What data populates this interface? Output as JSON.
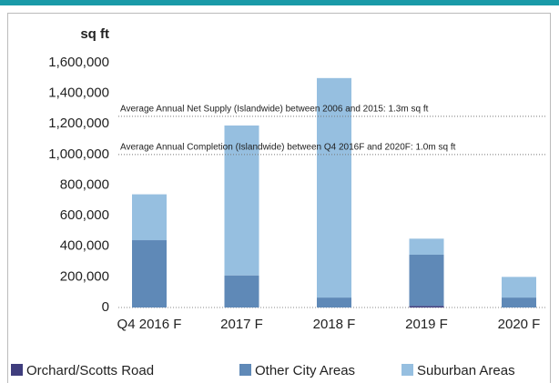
{
  "chart_data": {
    "type": "bar",
    "stacked": true,
    "y_label": "sq ft",
    "categories": [
      "Q4 2016 F",
      "2017 F",
      "2018 F",
      "2019 F",
      "2020 F"
    ],
    "series": [
      {
        "name": "Orchard/Scotts Road",
        "color": "#3f3d7d",
        "values": [
          0,
          0,
          0,
          10000,
          0
        ]
      },
      {
        "name": "Other City Areas",
        "color": "#5f89b7",
        "values": [
          440000,
          210000,
          65000,
          335000,
          65000
        ]
      },
      {
        "name": "Suburban Areas",
        "color": "#96bfe0",
        "values": [
          300000,
          980000,
          1435000,
          105000,
          135000
        ]
      }
    ],
    "ylim": [
      0,
      1600000
    ],
    "yticks": [
      0,
      {
        "value": 200000,
        "label": "200,000"
      },
      {
        "value": 400000,
        "label": "400,000"
      },
      {
        "value": 600000,
        "label": "600,000"
      },
      {
        "value": 800000,
        "label": "800,000"
      },
      {
        "value": 1000000,
        "label": "1,000,000"
      },
      {
        "value": 1200000,
        "label": "1,200,000"
      },
      {
        "value": 1400000,
        "label": "1,400,000"
      },
      {
        "value": 1600000,
        "label": "1,600,000"
      }
    ],
    "reference_lines": [
      {
        "value": 1250000,
        "label": "Average Annual Net Supply (Islandwide) between 2006 and 2015: 1.3m sq ft"
      },
      {
        "value": 1000000,
        "label": "Average Annual Completion (Islandwide) between Q4 2016F and 2020F: 1.0m sq ft"
      }
    ],
    "legend": "bottom"
  }
}
